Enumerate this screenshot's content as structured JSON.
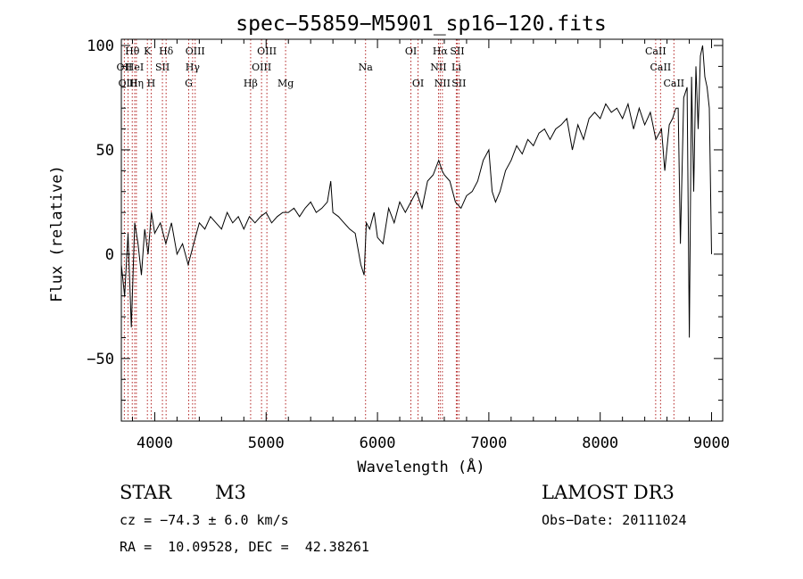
{
  "chart_data": {
    "type": "line",
    "title": "spec−55859−M5901_sp16−120.fits",
    "xlabel": "Wavelength (Å)",
    "ylabel": "Flux (relative)",
    "xlim": [
      3700,
      9100
    ],
    "ylim": [
      -80,
      103
    ],
    "xticks": [
      4000,
      5000,
      6000,
      7000,
      8000,
      9000
    ],
    "xtick_labels": [
      "4000",
      "5000",
      "6000",
      "7000",
      "8000",
      "9000"
    ],
    "yticks": [
      -50,
      0,
      50,
      100
    ],
    "ytick_labels": [
      "−50",
      "0",
      "50",
      "100"
    ],
    "grid": false,
    "series": [
      {
        "name": "flux",
        "x": [
          3700,
          3730,
          3760,
          3790,
          3820,
          3850,
          3880,
          3910,
          3940,
          3970,
          4000,
          4050,
          4100,
          4150,
          4200,
          4250,
          4300,
          4350,
          4400,
          4450,
          4500,
          4550,
          4600,
          4650,
          4700,
          4750,
          4800,
          4850,
          4900,
          4950,
          5000,
          5050,
          5100,
          5150,
          5200,
          5250,
          5300,
          5350,
          5400,
          5450,
          5500,
          5550,
          5580,
          5600,
          5650,
          5700,
          5750,
          5800,
          5850,
          5880,
          5900,
          5930,
          5970,
          6000,
          6050,
          6100,
          6150,
          6200,
          6250,
          6300,
          6350,
          6400,
          6450,
          6500,
          6550,
          6580,
          6600,
          6650,
          6700,
          6750,
          6800,
          6850,
          6900,
          6950,
          7000,
          7030,
          7060,
          7100,
          7150,
          7200,
          7250,
          7300,
          7350,
          7400,
          7450,
          7500,
          7550,
          7600,
          7650,
          7700,
          7750,
          7800,
          7850,
          7900,
          7950,
          8000,
          8050,
          8100,
          8150,
          8200,
          8250,
          8300,
          8350,
          8400,
          8450,
          8500,
          8550,
          8580,
          8620,
          8650,
          8680,
          8700,
          8720,
          8750,
          8780,
          8800,
          8820,
          8840,
          8860,
          8880,
          8900,
          8920,
          8940,
          8960,
          8980,
          9000
        ],
        "y": [
          -5,
          -20,
          10,
          -35,
          15,
          5,
          -10,
          12,
          0,
          20,
          10,
          15,
          5,
          15,
          0,
          5,
          -5,
          5,
          15,
          12,
          18,
          15,
          12,
          20,
          15,
          18,
          12,
          18,
          15,
          18,
          20,
          15,
          18,
          20,
          20,
          22,
          18,
          22,
          25,
          20,
          22,
          25,
          35,
          20,
          18,
          15,
          12,
          10,
          -5,
          -10,
          15,
          12,
          20,
          8,
          5,
          22,
          15,
          25,
          20,
          25,
          30,
          22,
          35,
          38,
          45,
          40,
          38,
          35,
          25,
          22,
          28,
          30,
          35,
          45,
          50,
          30,
          25,
          30,
          40,
          45,
          52,
          48,
          55,
          52,
          58,
          60,
          55,
          60,
          62,
          65,
          50,
          62,
          55,
          65,
          68,
          65,
          72,
          68,
          70,
          65,
          72,
          60,
          70,
          62,
          68,
          55,
          60,
          40,
          62,
          65,
          70,
          70,
          5,
          75,
          80,
          -40,
          85,
          30,
          90,
          60,
          95,
          100,
          85,
          80,
          70,
          0
        ]
      }
    ],
    "spectral_lines": [
      {
        "label": "OII",
        "x": 3727,
        "row": 2
      },
      {
        "label": "Hθ",
        "x": 3798,
        "row": 1
      },
      {
        "label": "OIII",
        "x": 3760,
        "row": 3
      },
      {
        "label": "HeI",
        "x": 3820,
        "row": 2
      },
      {
        "label": "Hη",
        "x": 3835,
        "row": 3
      },
      {
        "label": "K",
        "x": 3934,
        "row": 1
      },
      {
        "label": "H",
        "x": 3968,
        "row": 3
      },
      {
        "label": "SII",
        "x": 4069,
        "row": 2
      },
      {
        "label": "Hδ",
        "x": 4102,
        "row": 1
      },
      {
        "label": "OIII",
        "x": 4363,
        "row": 1
      },
      {
        "label": "Hγ",
        "x": 4340,
        "row": 2
      },
      {
        "label": "G",
        "x": 4305,
        "row": 3
      },
      {
        "label": "Hβ",
        "x": 4861,
        "row": 3
      },
      {
        "label": "OIII",
        "x": 4959,
        "row": 2
      },
      {
        "label": "OIII",
        "x": 5007,
        "row": 1
      },
      {
        "label": "Mg",
        "x": 5175,
        "row": 3
      },
      {
        "label": "Na",
        "x": 5893,
        "row": 2
      },
      {
        "label": "OI",
        "x": 6300,
        "row": 1
      },
      {
        "label": "OI",
        "x": 6364,
        "row": 3
      },
      {
        "label": "Hα",
        "x": 6563,
        "row": 1
      },
      {
        "label": "NII",
        "x": 6548,
        "row": 2
      },
      {
        "label": "NII",
        "x": 6583,
        "row": 3
      },
      {
        "label": "SII",
        "x": 6716,
        "row": 1
      },
      {
        "label": "Li",
        "x": 6708,
        "row": 2
      },
      {
        "label": "SII",
        "x": 6731,
        "row": 3
      },
      {
        "label": "CaII",
        "x": 8498,
        "row": 1
      },
      {
        "label": "CaII",
        "x": 8542,
        "row": 2
      },
      {
        "label": "CaII",
        "x": 8662,
        "row": 3
      }
    ]
  },
  "info": {
    "object_class": "STAR",
    "subclass": "M3",
    "survey": "LAMOST DR3",
    "redshift_line": "cz = −74.3 ± 6.0 km/s",
    "obs_date": "Obs−Date: 20111024",
    "coords": "RA =  10.09528, DEC =  42.38261"
  }
}
